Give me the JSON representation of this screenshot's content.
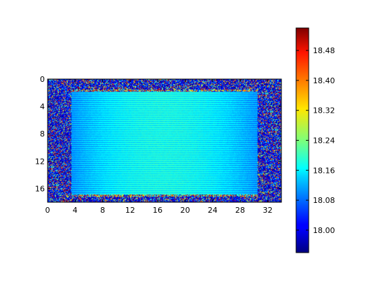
{
  "chart_data": {
    "type": "heatmap",
    "title": "",
    "xlabel": "",
    "ylabel": "",
    "xlim": [
      0,
      34
    ],
    "ylim": [
      18,
      0
    ],
    "x_ticks": [
      0,
      4,
      8,
      12,
      16,
      20,
      24,
      28,
      32
    ],
    "y_ticks": [
      0,
      4,
      8,
      12,
      16
    ],
    "colorbar": {
      "colormap": "jet",
      "range": [
        17.94,
        18.54
      ],
      "ticks": [
        18.0,
        18.08,
        18.16,
        18.24,
        18.32,
        18.4,
        18.48
      ],
      "tick_labels": [
        "18.00",
        "18.08",
        "18.16",
        "18.24",
        "18.32",
        "18.40",
        "18.48"
      ]
    },
    "regions": {
      "border_noise": "random values across full range",
      "interior_x_range": [
        3.5,
        30.5
      ],
      "interior_y_range": [
        1.5,
        17.2
      ],
      "interior_value_center": 18.19,
      "interior_value_edge": 18.12,
      "interior_pattern": "horizontal stripes"
    },
    "grid": false
  }
}
